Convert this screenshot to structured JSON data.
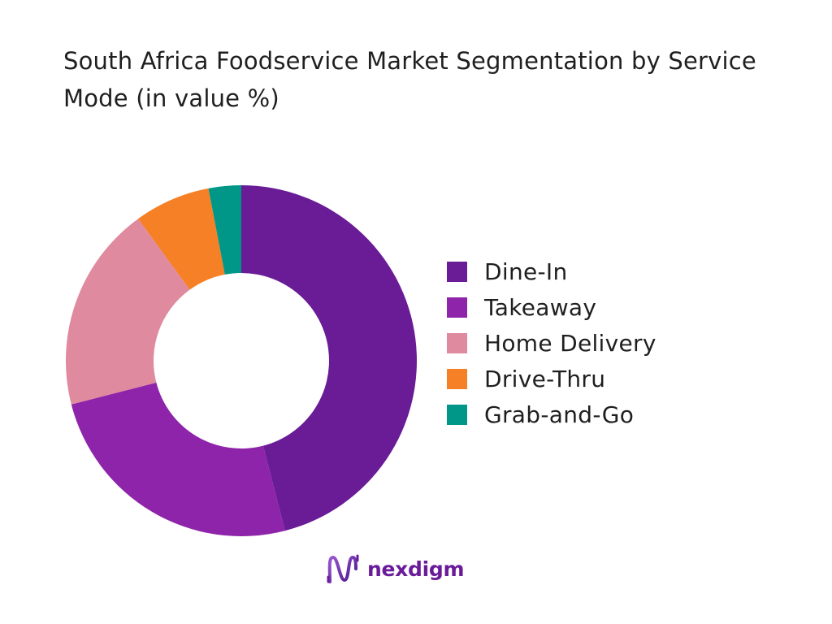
{
  "title": "South Africa Foodservice Market Segmentation by Service Mode (in value %)",
  "chart_data": {
    "type": "pie",
    "donut": true,
    "title": "South Africa Foodservice Market Segmentation by Service Mode (in value %)",
    "categories": [
      "Dine-In",
      "Takeaway",
      "Home Delivery",
      "Drive-Thru",
      "Grab-and-Go"
    ],
    "values": [
      46,
      25,
      19,
      7,
      3
    ],
    "colors": [
      "#6a1b96",
      "#8e24aa",
      "#df8a9e",
      "#f58025",
      "#009688"
    ],
    "legend_position": "right",
    "start_angle": "top",
    "direction": "clockwise"
  },
  "brand": {
    "name": "nexdigm",
    "color": "#6a1b9a"
  }
}
